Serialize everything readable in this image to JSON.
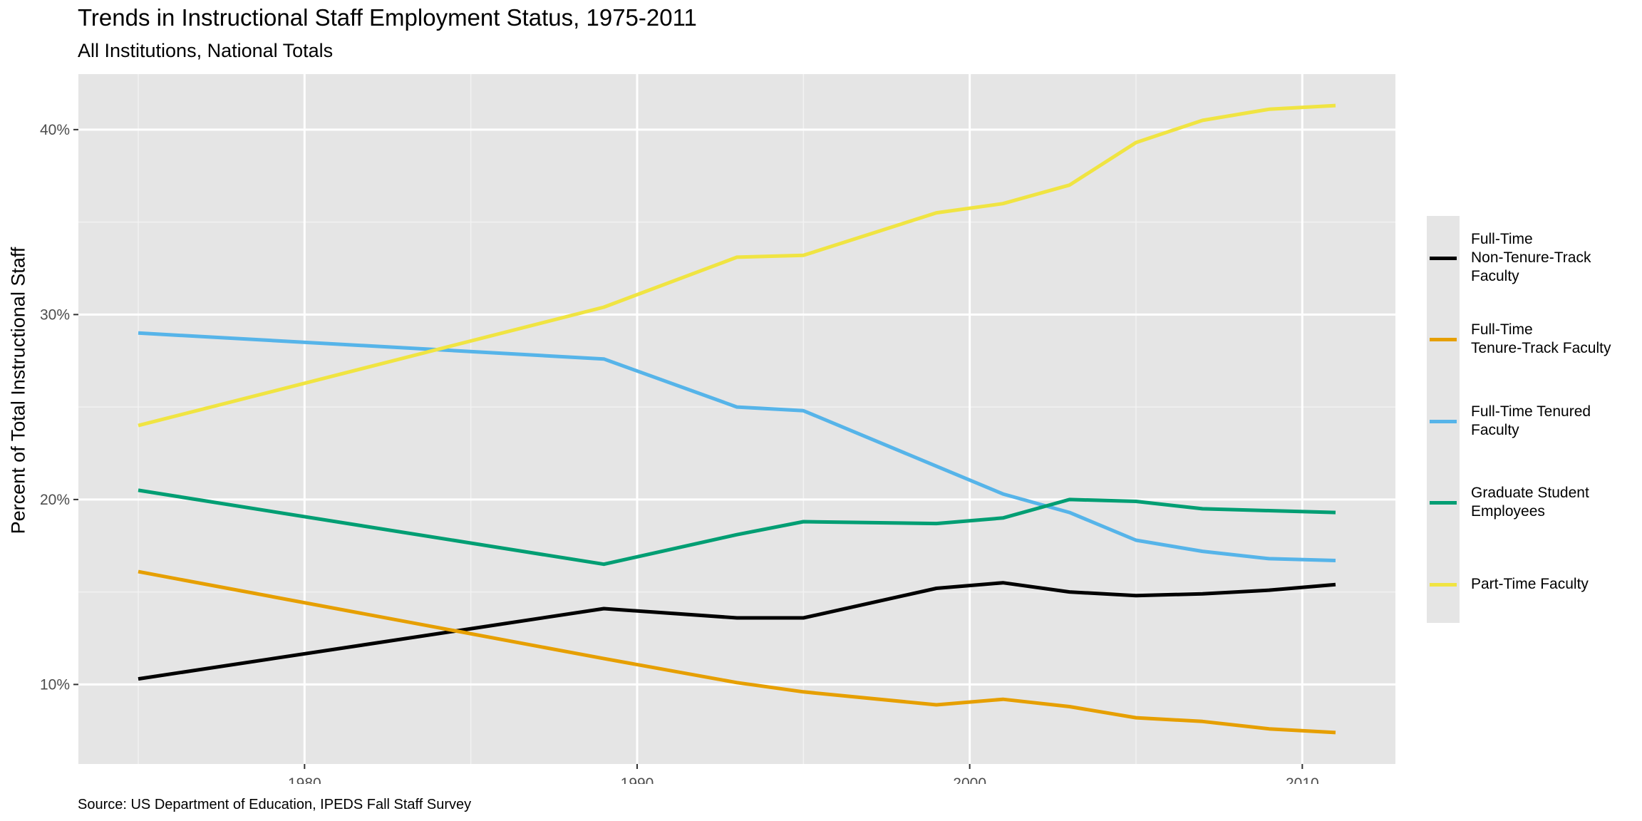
{
  "title": "Trends in Instructional Staff Employment Status, 1975-2011",
  "subtitle": "All Institutions, National Totals",
  "caption": "Source: US Department of Education, IPEDS Fall Staff Survey",
  "chart_data": {
    "type": "line",
    "title": "Trends in Instructional Staff Employment Status, 1975-2011",
    "subtitle": "All Institutions, National Totals",
    "xlabel": "",
    "ylabel": "Percent of Total Instructional Staff",
    "xlim": [
      1973.2,
      2012.8
    ],
    "ylim": [
      5.7,
      43.0
    ],
    "x_ticks": [
      1980,
      1990,
      2000,
      2010
    ],
    "x_tick_labels": [
      "1980",
      "1990",
      "2000",
      "2010"
    ],
    "y_ticks": [
      10,
      20,
      30,
      40
    ],
    "y_tick_labels": [
      "10%",
      "20%",
      "30%",
      "40%"
    ],
    "grid": true,
    "legend_position": "right",
    "x": [
      1975,
      1989,
      1993,
      1995,
      1999,
      2001,
      2003,
      2005,
      2007,
      2009,
      2011
    ],
    "series": [
      {
        "name": "Full-Time\nNon-Tenure-Track\nFaculty",
        "color": "#000000",
        "values": [
          10.3,
          14.1,
          13.6,
          13.6,
          15.2,
          15.5,
          15.0,
          14.8,
          14.9,
          15.1,
          15.4
        ]
      },
      {
        "name": "Full-Time\nTenure-Track Faculty",
        "color": "#E69F00",
        "values": [
          16.1,
          11.4,
          10.1,
          9.6,
          8.9,
          9.2,
          8.8,
          8.2,
          8.0,
          7.6,
          7.4
        ]
      },
      {
        "name": "Full-Time Tenured\nFaculty",
        "color": "#56B4E9",
        "values": [
          29.0,
          27.6,
          25.0,
          24.8,
          21.8,
          20.3,
          19.3,
          17.8,
          17.2,
          16.8,
          16.7
        ]
      },
      {
        "name": "Graduate Student\nEmployees",
        "color": "#009E73",
        "values": [
          20.5,
          16.5,
          18.1,
          18.8,
          18.7,
          19.0,
          20.0,
          19.9,
          19.5,
          19.4,
          19.3
        ]
      },
      {
        "name": "Part-Time Faculty",
        "color": "#F0E442",
        "values": [
          24.0,
          30.4,
          33.1,
          33.2,
          35.5,
          36.0,
          37.0,
          39.3,
          40.5,
          41.1,
          41.3
        ]
      }
    ]
  }
}
